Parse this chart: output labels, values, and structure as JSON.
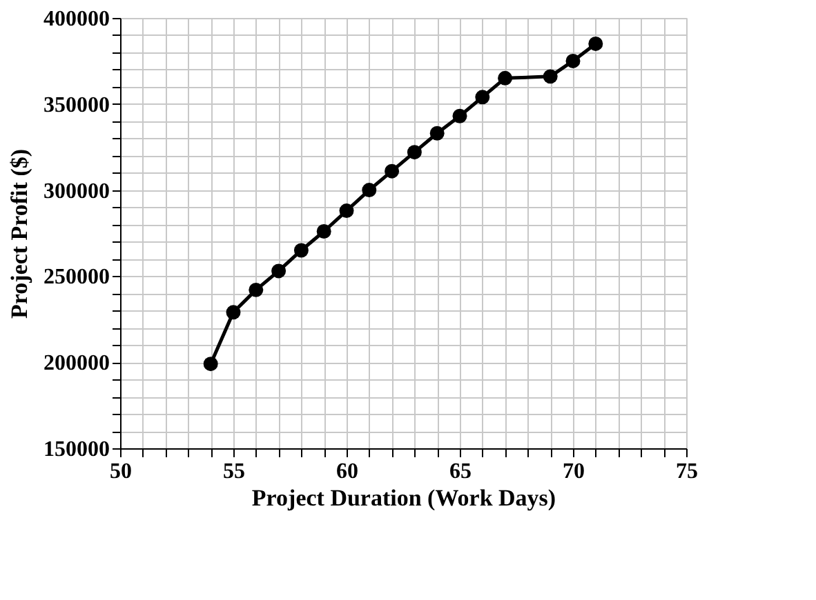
{
  "chart_data": {
    "type": "line",
    "xlabel": "Project Duration (Work Days)",
    "ylabel": "Project Profit ($)",
    "x": [
      54,
      55,
      56,
      57,
      58,
      59,
      60,
      61,
      62,
      63,
      64,
      65,
      66,
      67,
      69,
      70,
      71
    ],
    "series": [
      {
        "color": "#000000",
        "values": [
          199000,
          229000,
          242000,
          253000,
          265000,
          276000,
          288000,
          300000,
          311000,
          322000,
          333000,
          343000,
          354000,
          365000,
          366000,
          375000,
          385000
        ]
      }
    ],
    "xlim": [
      50,
      75
    ],
    "ylim": [
      150000,
      400000
    ],
    "xticks": [
      50,
      {
        "value": 51,
        "label": null
      },
      {
        "value": 52,
        "label": null
      },
      {
        "value": 53,
        "label": null
      },
      {
        "value": 54,
        "label": null
      },
      55,
      {
        "value": 56,
        "label": null
      },
      {
        "value": 57,
        "label": null
      },
      {
        "value": 58,
        "label": null
      },
      {
        "value": 59,
        "label": null
      },
      60,
      {
        "value": 61,
        "label": null
      },
      {
        "value": 62,
        "label": null
      },
      {
        "value": 63,
        "label": null
      },
      {
        "value": 64,
        "label": null
      },
      65,
      {
        "value": 66,
        "label": null
      },
      {
        "value": 67,
        "label": null
      },
      {
        "value": 68,
        "label": null
      },
      {
        "value": 69,
        "label": null
      },
      70,
      {
        "value": 71,
        "label": null
      },
      {
        "value": 72,
        "label": null
      },
      {
        "value": 73,
        "label": null
      },
      {
        "value": 74,
        "label": null
      },
      75
    ],
    "yticks": [
      150000,
      {
        "value": 160000,
        "label": null
      },
      {
        "value": 170000,
        "label": null
      },
      {
        "value": 180000,
        "label": null
      },
      {
        "value": 190000,
        "label": null
      },
      200000,
      {
        "value": 210000,
        "label": null
      },
      {
        "value": 220000,
        "label": null
      },
      {
        "value": 230000,
        "label": null
      },
      {
        "value": 240000,
        "label": null
      },
      250000,
      {
        "value": 260000,
        "label": null
      },
      {
        "value": 270000,
        "label": null
      },
      {
        "value": 280000,
        "label": null
      },
      {
        "value": 290000,
        "label": null
      },
      300000,
      {
        "value": 310000,
        "label": null
      },
      {
        "value": 320000,
        "label": null
      },
      {
        "value": 330000,
        "label": null
      },
      {
        "value": 340000,
        "label": null
      },
      350000,
      {
        "value": 360000,
        "label": null
      },
      {
        "value": 370000,
        "label": null
      },
      {
        "value": 380000,
        "label": null
      },
      {
        "value": 390000,
        "label": null
      },
      400000
    ],
    "grid": true,
    "marker": "circle",
    "line_style": "solid"
  }
}
